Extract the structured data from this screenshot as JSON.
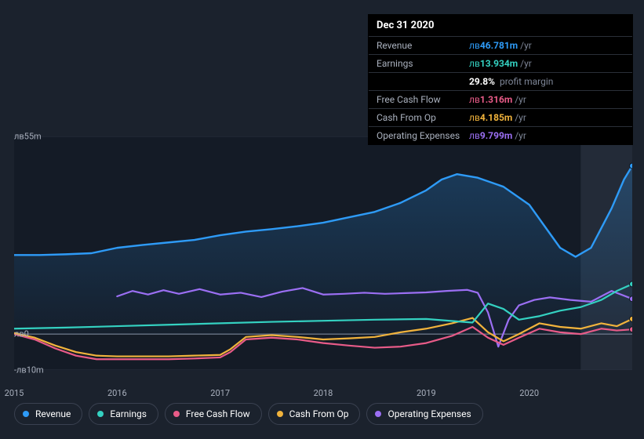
{
  "tooltip": {
    "date": "Dec 31 2020",
    "rows": [
      {
        "label": "Revenue",
        "cur": "лв",
        "num": "46.781m",
        "unit": "/yr",
        "color": "#2e9bf7"
      },
      {
        "label": "Earnings",
        "cur": "лв",
        "num": "13.934m",
        "unit": "/yr",
        "color": "#34d1c1"
      },
      {
        "label": "",
        "pct": "29.8%",
        "pm": "profit margin"
      },
      {
        "label": "Free Cash Flow",
        "cur": "лв",
        "num": "1.316m",
        "unit": "/yr",
        "color": "#e85b88"
      },
      {
        "label": "Cash From Op",
        "cur": "лв",
        "num": "4.185m",
        "unit": "/yr",
        "color": "#f1b33c"
      },
      {
        "label": "Operating Expenses",
        "cur": "лв",
        "num": "9.799m",
        "unit": "/yr",
        "color": "#9b6ff3"
      }
    ]
  },
  "chart": {
    "ymin": -10,
    "ymax": 55,
    "xmin": 2015,
    "xmax": 2021,
    "ylabels": [
      {
        "v": 55,
        "text": "лв55m"
      },
      {
        "v": 0,
        "text": "лв0"
      },
      {
        "v": -10,
        "text": "-лв10m"
      }
    ],
    "xlabels": [
      {
        "v": 2015,
        "text": "2015"
      },
      {
        "v": 2016,
        "text": "2016"
      },
      {
        "v": 2017,
        "text": "2017"
      },
      {
        "v": 2018,
        "text": "2018"
      },
      {
        "v": 2019,
        "text": "2019"
      },
      {
        "v": 2020,
        "text": "2020"
      }
    ],
    "background": "#1b222d",
    "plot_bg_left": "#141b26",
    "plot_bg_right": "#232b38",
    "split_x": 2020.5,
    "grid_color": "#2a3140",
    "zero_line_color": "#6a7385",
    "area_series": "revenue",
    "area_fill_top": "rgba(46,155,247,0.25)",
    "area_fill_bottom": "rgba(46,155,247,0.03)",
    "series": {
      "revenue": {
        "color": "#2e9bf7",
        "width": 2.4,
        "pts": [
          [
            2015.0,
            22
          ],
          [
            2015.25,
            22
          ],
          [
            2015.5,
            22.2
          ],
          [
            2015.75,
            22.5
          ],
          [
            2016.0,
            24
          ],
          [
            2016.25,
            24.8
          ],
          [
            2016.5,
            25.5
          ],
          [
            2016.75,
            26.2
          ],
          [
            2017.0,
            27.5
          ],
          [
            2017.25,
            28.5
          ],
          [
            2017.5,
            29.2
          ],
          [
            2017.75,
            30.0
          ],
          [
            2018.0,
            31
          ],
          [
            2018.25,
            32.5
          ],
          [
            2018.5,
            34
          ],
          [
            2018.75,
            36.5
          ],
          [
            2019.0,
            40
          ],
          [
            2019.15,
            43
          ],
          [
            2019.3,
            44.5
          ],
          [
            2019.5,
            43.5
          ],
          [
            2019.75,
            41
          ],
          [
            2020.0,
            36
          ],
          [
            2020.15,
            30
          ],
          [
            2020.3,
            24
          ],
          [
            2020.45,
            21.5
          ],
          [
            2020.6,
            24
          ],
          [
            2020.8,
            35
          ],
          [
            2020.92,
            43
          ],
          [
            2021.0,
            46.8
          ]
        ]
      },
      "earnings": {
        "color": "#34d1c1",
        "width": 2.2,
        "pts": [
          [
            2015.0,
            1.5
          ],
          [
            2015.5,
            1.8
          ],
          [
            2016.0,
            2.2
          ],
          [
            2016.5,
            2.6
          ],
          [
            2017.0,
            3.0
          ],
          [
            2017.5,
            3.4
          ],
          [
            2018.0,
            3.7
          ],
          [
            2018.5,
            4.0
          ],
          [
            2019.0,
            4.2
          ],
          [
            2019.45,
            3.2
          ],
          [
            2019.6,
            8.5
          ],
          [
            2019.75,
            7.0
          ],
          [
            2019.9,
            4.0
          ],
          [
            2020.1,
            5.0
          ],
          [
            2020.3,
            6.5
          ],
          [
            2020.5,
            7.5
          ],
          [
            2020.7,
            9.5
          ],
          [
            2020.85,
            12
          ],
          [
            2021.0,
            13.9
          ]
        ]
      },
      "fcf": {
        "color": "#e85b88",
        "width": 2.2,
        "pts": [
          [
            2015.0,
            0
          ],
          [
            2015.2,
            -1.5
          ],
          [
            2015.4,
            -4
          ],
          [
            2015.6,
            -6
          ],
          [
            2015.8,
            -7
          ],
          [
            2016.0,
            -7
          ],
          [
            2016.25,
            -7
          ],
          [
            2016.5,
            -7
          ],
          [
            2016.75,
            -6.8
          ],
          [
            2017.0,
            -6.5
          ],
          [
            2017.1,
            -5
          ],
          [
            2017.25,
            -1.5
          ],
          [
            2017.5,
            -1
          ],
          [
            2017.75,
            -1.5
          ],
          [
            2018.0,
            -2.5
          ],
          [
            2018.25,
            -3.2
          ],
          [
            2018.5,
            -3.8
          ],
          [
            2018.75,
            -3.5
          ],
          [
            2019.0,
            -2.5
          ],
          [
            2019.25,
            -0.5
          ],
          [
            2019.45,
            2
          ],
          [
            2019.6,
            -1
          ],
          [
            2019.75,
            -3
          ],
          [
            2019.9,
            -1
          ],
          [
            2020.1,
            1.5
          ],
          [
            2020.3,
            0.5
          ],
          [
            2020.5,
            0
          ],
          [
            2020.7,
            1.5
          ],
          [
            2020.85,
            1.0
          ],
          [
            2021.0,
            1.3
          ]
        ]
      },
      "cfo": {
        "color": "#f1b33c",
        "width": 2.2,
        "pts": [
          [
            2015.0,
            0.3
          ],
          [
            2015.2,
            -1
          ],
          [
            2015.4,
            -3.2
          ],
          [
            2015.6,
            -5
          ],
          [
            2015.8,
            -6
          ],
          [
            2016.0,
            -6.2
          ],
          [
            2016.25,
            -6.2
          ],
          [
            2016.5,
            -6.2
          ],
          [
            2016.75,
            -6.0
          ],
          [
            2017.0,
            -5.8
          ],
          [
            2017.1,
            -4.2
          ],
          [
            2017.25,
            -0.8
          ],
          [
            2017.5,
            -0.3
          ],
          [
            2017.75,
            -0.8
          ],
          [
            2018.0,
            -1.5
          ],
          [
            2018.25,
            -1.2
          ],
          [
            2018.5,
            -0.8
          ],
          [
            2018.75,
            0.5
          ],
          [
            2019.0,
            1.5
          ],
          [
            2019.25,
            3
          ],
          [
            2019.45,
            4.5
          ],
          [
            2019.6,
            0.5
          ],
          [
            2019.75,
            -2
          ],
          [
            2019.9,
            0
          ],
          [
            2020.1,
            3
          ],
          [
            2020.3,
            2
          ],
          [
            2020.5,
            1.5
          ],
          [
            2020.7,
            3
          ],
          [
            2020.85,
            2.2
          ],
          [
            2021.0,
            4.2
          ]
        ]
      },
      "opex": {
        "color": "#9b6ff3",
        "width": 2.2,
        "pts": [
          [
            2016.0,
            10.5
          ],
          [
            2016.15,
            12
          ],
          [
            2016.3,
            11
          ],
          [
            2016.45,
            12.2
          ],
          [
            2016.6,
            11.2
          ],
          [
            2016.8,
            12.5
          ],
          [
            2017.0,
            11
          ],
          [
            2017.2,
            11.5
          ],
          [
            2017.4,
            10.3
          ],
          [
            2017.6,
            11.8
          ],
          [
            2017.8,
            12.8
          ],
          [
            2018.0,
            11
          ],
          [
            2018.2,
            11.2
          ],
          [
            2018.4,
            11.5
          ],
          [
            2018.6,
            11.2
          ],
          [
            2018.8,
            11.4
          ],
          [
            2019.0,
            11.6
          ],
          [
            2019.2,
            12
          ],
          [
            2019.4,
            12.3
          ],
          [
            2019.5,
            11.5
          ],
          [
            2019.6,
            6
          ],
          [
            2019.7,
            -3.5
          ],
          [
            2019.8,
            4
          ],
          [
            2019.9,
            8
          ],
          [
            2020.05,
            9.5
          ],
          [
            2020.2,
            10.2
          ],
          [
            2020.4,
            9.5
          ],
          [
            2020.6,
            9
          ],
          [
            2020.8,
            12
          ],
          [
            2021.0,
            9.8
          ]
        ]
      }
    }
  },
  "legend": [
    {
      "label": "Revenue",
      "color": "#2e9bf7"
    },
    {
      "label": "Earnings",
      "color": "#34d1c1"
    },
    {
      "label": "Free Cash Flow",
      "color": "#e85b88"
    },
    {
      "label": "Cash From Op",
      "color": "#f1b33c"
    },
    {
      "label": "Operating Expenses",
      "color": "#9b6ff3"
    }
  ]
}
